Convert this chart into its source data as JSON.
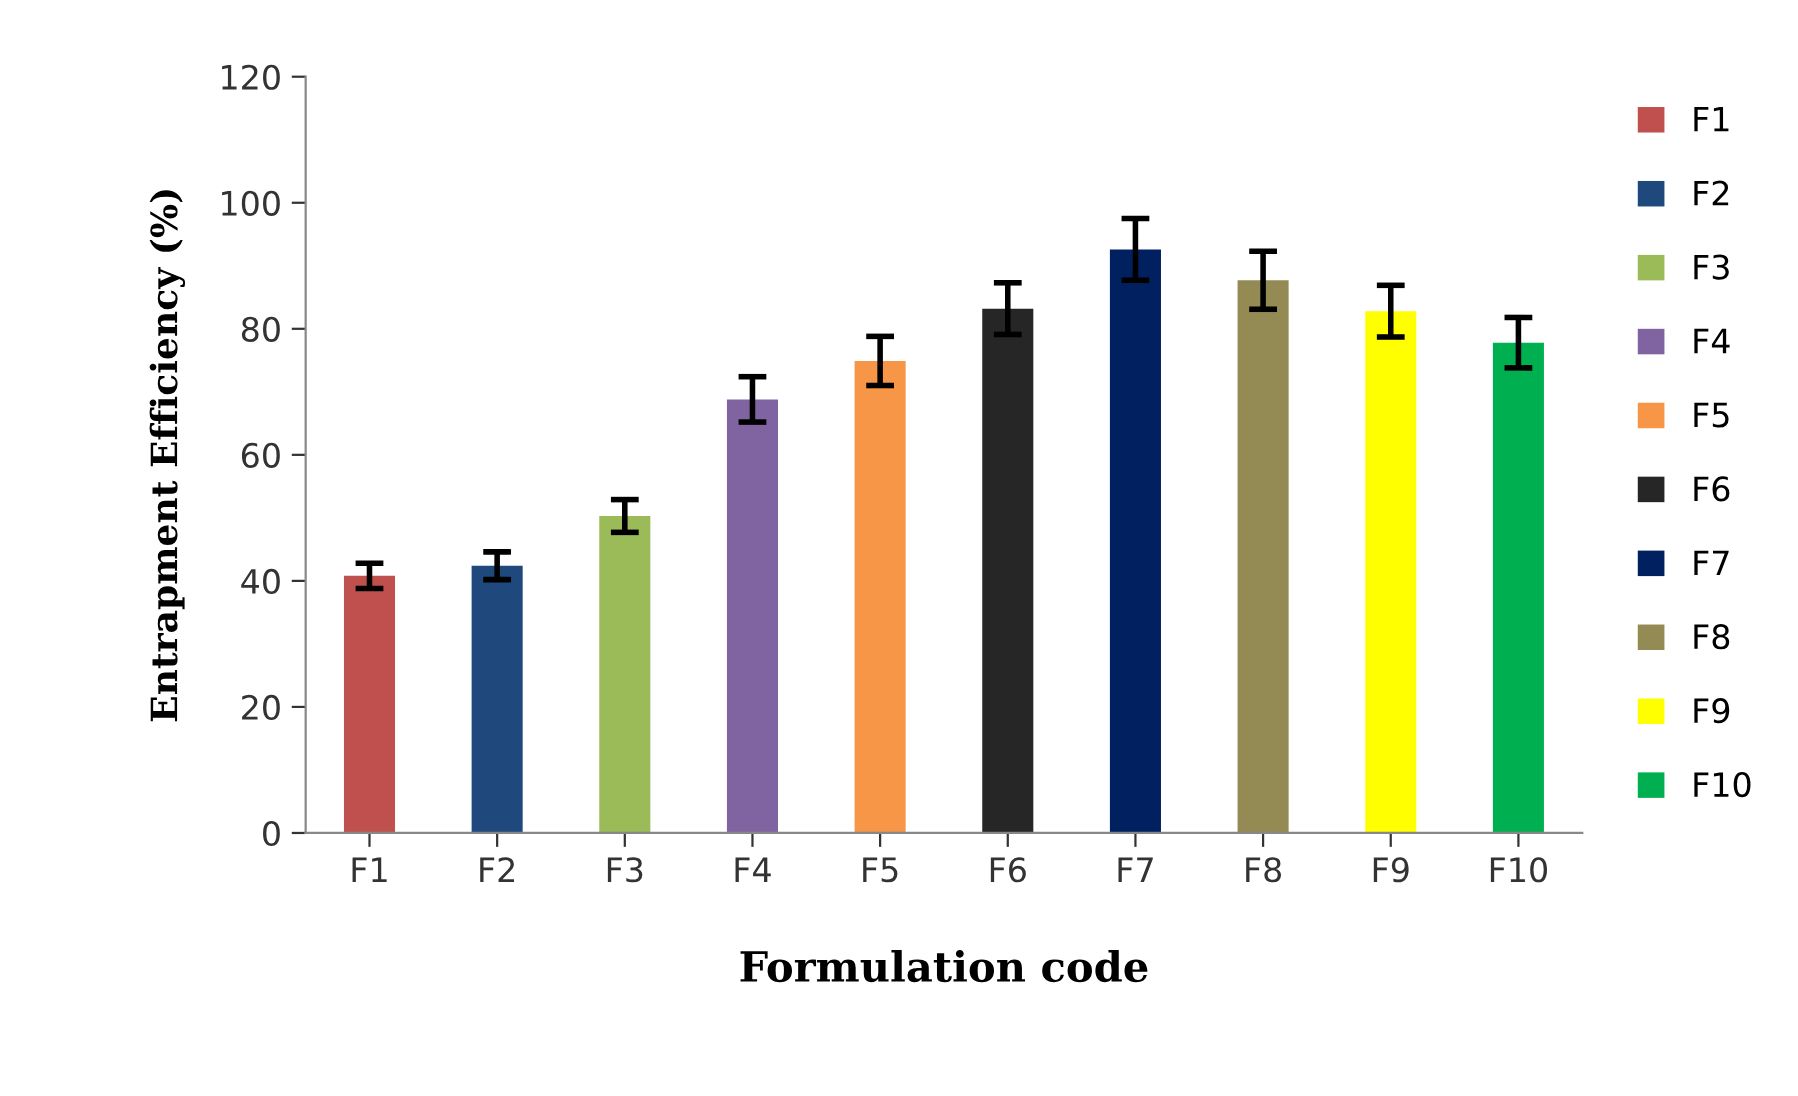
{
  "chart_data": {
    "type": "bar",
    "xlabel": "Formulation code",
    "ylabel": "Entrapment Efficiency (%)",
    "categories": [
      "F1",
      "F2",
      "F3",
      "F4",
      "F5",
      "F6",
      "F7",
      "F8",
      "F9",
      "F10"
    ],
    "stacked": true,
    "series": [
      {
        "name": "F1",
        "color": "#c0504d",
        "values": [
          40.8,
          null,
          null,
          null,
          null,
          null,
          null,
          null,
          null,
          null
        ],
        "errors": [
          2.0,
          null,
          null,
          null,
          null,
          null,
          null,
          null,
          null,
          null
        ]
      },
      {
        "name": "F2",
        "color": "#1f497d",
        "values": [
          null,
          42.4,
          null,
          null,
          null,
          null,
          null,
          null,
          null,
          null
        ],
        "errors": [
          null,
          2.2,
          null,
          null,
          null,
          null,
          null,
          null,
          null,
          null
        ]
      },
      {
        "name": "F3",
        "color": "#9bbb59",
        "values": [
          null,
          null,
          50.3,
          null,
          null,
          null,
          null,
          null,
          null,
          null
        ],
        "errors": [
          null,
          null,
          2.6,
          null,
          null,
          null,
          null,
          null,
          null,
          null
        ]
      },
      {
        "name": "F4",
        "color": "#8064a2",
        "values": [
          null,
          null,
          null,
          68.8,
          null,
          null,
          null,
          null,
          null,
          null
        ],
        "errors": [
          null,
          null,
          null,
          3.6,
          null,
          null,
          null,
          null,
          null,
          null
        ]
      },
      {
        "name": "F5",
        "color": "#f79646",
        "values": [
          null,
          null,
          null,
          null,
          74.9,
          null,
          null,
          null,
          null,
          null
        ],
        "errors": [
          null,
          null,
          null,
          null,
          3.9,
          null,
          null,
          null,
          null,
          null
        ]
      },
      {
        "name": "F6",
        "color": "#262626",
        "values": [
          null,
          null,
          null,
          null,
          null,
          83.2,
          null,
          null,
          null,
          null
        ],
        "errors": [
          null,
          null,
          null,
          null,
          null,
          4.1,
          null,
          null,
          null,
          null
        ]
      },
      {
        "name": "F7",
        "color": "#002060",
        "values": [
          null,
          null,
          null,
          null,
          null,
          null,
          92.6,
          null,
          null,
          null
        ],
        "errors": [
          null,
          null,
          null,
          null,
          null,
          null,
          4.9,
          null,
          null,
          null
        ]
      },
      {
        "name": "F8",
        "color": "#948a54",
        "values": [
          null,
          null,
          null,
          null,
          null,
          null,
          null,
          87.7,
          null,
          null
        ],
        "errors": [
          null,
          null,
          null,
          null,
          null,
          null,
          null,
          4.6,
          null,
          null
        ]
      },
      {
        "name": "F9",
        "color": "#ffff00",
        "values": [
          null,
          null,
          null,
          null,
          null,
          null,
          null,
          null,
          82.8,
          null
        ],
        "errors": [
          null,
          null,
          null,
          null,
          null,
          null,
          null,
          null,
          4.1,
          null
        ]
      },
      {
        "name": "F10",
        "color": "#00b050",
        "values": [
          null,
          null,
          null,
          null,
          null,
          null,
          null,
          null,
          null,
          77.8
        ],
        "errors": [
          null,
          null,
          null,
          null,
          null,
          null,
          null,
          null,
          null,
          4.0
        ]
      }
    ],
    "ylim": [
      0,
      120
    ],
    "yticks": [
      0,
      20,
      40,
      60,
      80,
      100,
      120
    ],
    "grid": false,
    "legend": "right"
  }
}
